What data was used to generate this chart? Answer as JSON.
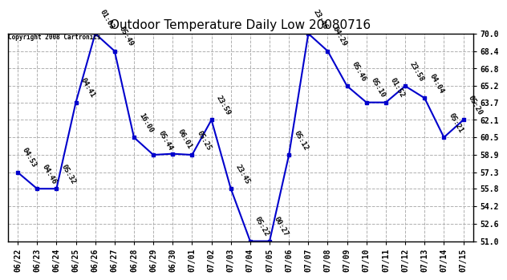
{
  "title": "Outdoor Temperature Daily Low 20080716",
  "copyright": "Copyright 2008 Cartronics",
  "x_labels": [
    "06/22",
    "06/23",
    "06/24",
    "06/25",
    "06/26",
    "06/27",
    "06/28",
    "06/29",
    "06/30",
    "07/01",
    "07/02",
    "07/03",
    "07/04",
    "07/05",
    "07/06",
    "07/07",
    "07/08",
    "07/09",
    "07/10",
    "07/11",
    "07/12",
    "07/13",
    "07/14",
    "07/15"
  ],
  "y_values": [
    57.3,
    55.8,
    55.8,
    63.7,
    70.0,
    68.4,
    60.5,
    58.9,
    59.0,
    58.9,
    62.1,
    55.8,
    51.0,
    51.0,
    58.9,
    70.0,
    68.4,
    65.2,
    63.7,
    63.7,
    65.2,
    64.1,
    60.5,
    62.1
  ],
  "annotations": [
    "04:53",
    "04:46",
    "05:32",
    "04:41",
    "01:03",
    "05:49",
    "16:00",
    "05:44",
    "06:01",
    "05:25",
    "23:59",
    "23:45",
    "05:22",
    "00:27",
    "05:12",
    "23:46",
    "04:29",
    "05:46",
    "05:10",
    "01:52",
    "23:58",
    "04:04",
    "05:21",
    "05:20"
  ],
  "line_color": "#0000cc",
  "marker_color": "#0000cc",
  "bg_color": "#ffffff",
  "grid_color": "#b0b0b0",
  "title_fontsize": 11,
  "annotation_fontsize": 6.5,
  "y_min": 51.0,
  "y_max": 70.0,
  "y_ticks": [
    51.0,
    52.6,
    54.2,
    55.8,
    57.3,
    58.9,
    60.5,
    62.1,
    63.7,
    65.2,
    66.8,
    68.4,
    70.0
  ]
}
